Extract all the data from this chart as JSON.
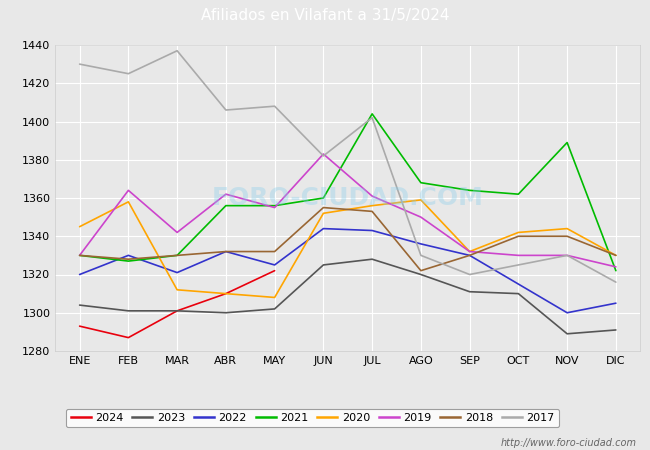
{
  "title": "Afiliados en Vilafant a 31/5/2024",
  "header_bg": "#4472c4",
  "ylim": [
    1280,
    1440
  ],
  "yticks": [
    1280,
    1300,
    1320,
    1340,
    1360,
    1380,
    1400,
    1420,
    1440
  ],
  "months": [
    "ENE",
    "FEB",
    "MAR",
    "ABR",
    "MAY",
    "JUN",
    "JUL",
    "AGO",
    "SEP",
    "OCT",
    "NOV",
    "DIC"
  ],
  "series": {
    "2024": {
      "color": "#e8000d",
      "data": [
        1293,
        1287,
        1301,
        1310,
        1322,
        null,
        null,
        null,
        null,
        null,
        null,
        null
      ]
    },
    "2023": {
      "color": "#555555",
      "data": [
        1304,
        1301,
        1301,
        1300,
        1302,
        1325,
        1328,
        1320,
        1311,
        1310,
        1289,
        1291
      ]
    },
    "2022": {
      "color": "#3333cc",
      "data": [
        1320,
        1330,
        1321,
        1332,
        1325,
        1344,
        1343,
        1336,
        1330,
        1315,
        1300,
        1305
      ]
    },
    "2021": {
      "color": "#00bb00",
      "data": [
        1330,
        1327,
        1330,
        1356,
        1356,
        1360,
        1404,
        1368,
        1364,
        1362,
        1389,
        1322
      ]
    },
    "2020": {
      "color": "#ffa500",
      "data": [
        1345,
        1358,
        1312,
        1310,
        1308,
        1352,
        1356,
        1359,
        1332,
        1342,
        1344,
        1330
      ]
    },
    "2019": {
      "color": "#cc44cc",
      "data": [
        1330,
        1364,
        1342,
        1362,
        1355,
        1383,
        1361,
        1350,
        1332,
        1330,
        1330,
        1324
      ]
    },
    "2018": {
      "color": "#996633",
      "data": [
        1330,
        1328,
        1330,
        1332,
        1332,
        1355,
        1353,
        1322,
        1330,
        1340,
        1340,
        1330
      ]
    },
    "2017": {
      "color": "#aaaaaa",
      "data": [
        1430,
        1425,
        1437,
        1406,
        1408,
        1382,
        1402,
        1330,
        1320,
        1325,
        1330,
        1316
      ]
    }
  },
  "legend_order": [
    "2024",
    "2023",
    "2022",
    "2021",
    "2020",
    "2019",
    "2018",
    "2017"
  ],
  "watermark": "FORO-CIUDAD.COM",
  "footer_url": "http://www.foro-ciudad.com",
  "bg_color": "#e8e8e8",
  "plot_bg": "#e8e8e8",
  "grid_color": "#ffffff"
}
